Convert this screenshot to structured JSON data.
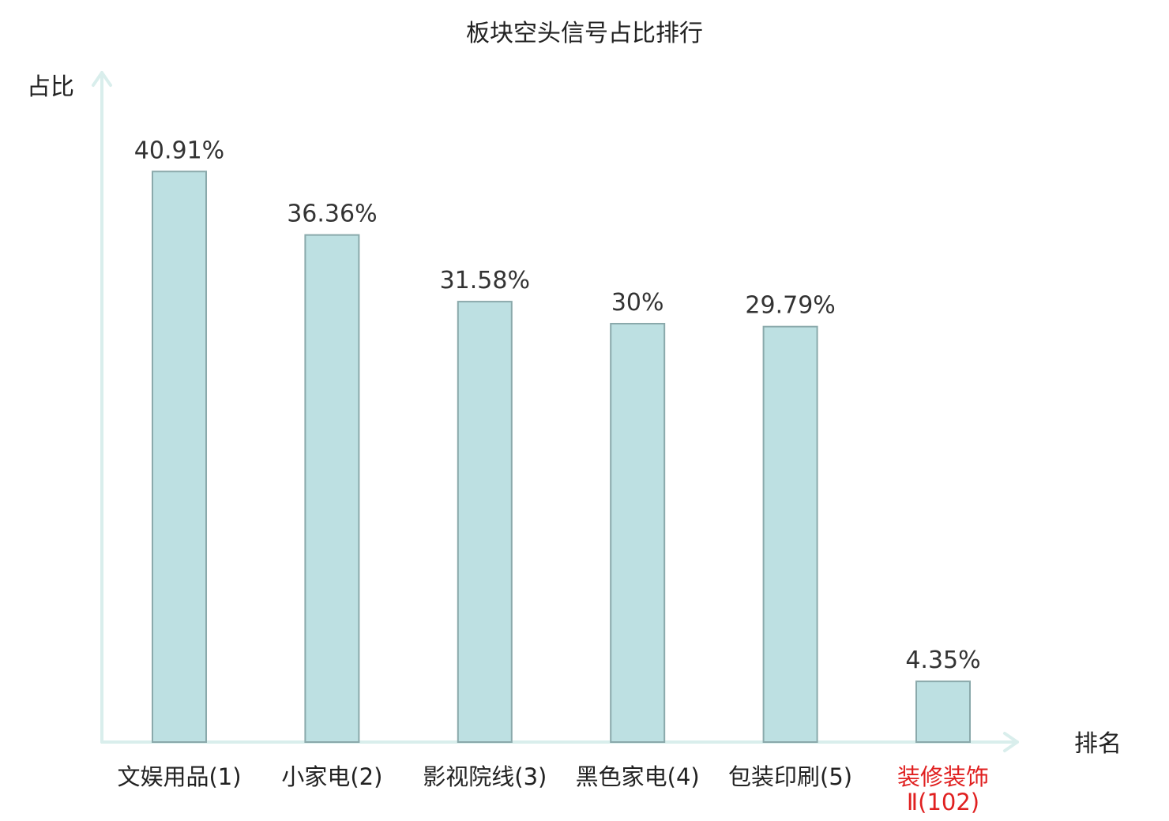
{
  "chart_data": {
    "type": "bar",
    "title": "板块空头信号占比排行",
    "xlabel": "排名",
    "ylabel": "占比",
    "categories": [
      {
        "name": "文娱用品",
        "rank": "(1)",
        "highlight": false
      },
      {
        "name": "小家电",
        "rank": "(2)",
        "highlight": false
      },
      {
        "name": "影视院线",
        "rank": "(3)",
        "highlight": false
      },
      {
        "name": "黑色家电",
        "rank": "(4)",
        "highlight": false
      },
      {
        "name": "包装印刷",
        "rank": "(5)",
        "highlight": false
      },
      {
        "name": "装修装饰",
        "rank": "Ⅱ(102)",
        "highlight": true
      }
    ],
    "values": [
      40.91,
      36.36,
      31.58,
      30,
      29.79,
      4.35
    ],
    "value_labels": [
      "40.91%",
      "36.36%",
      "31.58%",
      "30%",
      "29.79%",
      "4.35%"
    ],
    "ylim": [
      0,
      48
    ],
    "grid": false,
    "colors": {
      "bar_fill": "#bde0e2",
      "bar_stroke": "#8aa9ab",
      "axis": "#d9eeec",
      "highlight_text": "#e02020",
      "text": "#222222"
    }
  }
}
